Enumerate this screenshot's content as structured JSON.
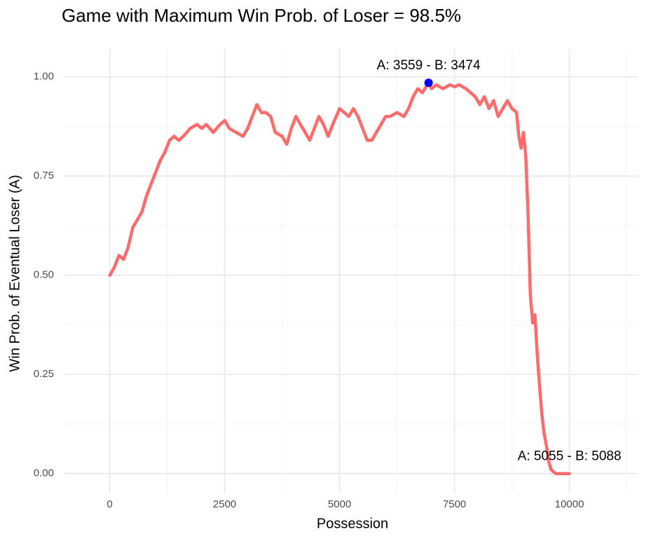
{
  "chart_data": {
    "type": "line",
    "title": "Game with Maximum Win Prob. of Loser = 98.5%",
    "xlabel": "Possession",
    "ylabel": "Win Prob. of Eventual Loser (A)",
    "xlim": [
      -1000,
      11500
    ],
    "ylim": [
      -0.05,
      1.07
    ],
    "xticks": [
      0,
      2500,
      5000,
      7500,
      10000
    ],
    "yticks": [
      {
        "value": 0,
        "label": "0.00"
      },
      {
        "value": 0.25,
        "label": "0.25"
      },
      {
        "value": 0.5,
        "label": "0.50"
      },
      {
        "value": 0.75,
        "label": "0.75"
      },
      {
        "value": 1,
        "label": "1.00"
      }
    ],
    "xticks_minor": [
      -1250,
      1250,
      3750,
      6250,
      8750,
      11250
    ],
    "yticks_minor": [
      0.125,
      0.375,
      0.625,
      0.875
    ],
    "grid": true,
    "series": [
      {
        "color": "#ff6b6b",
        "x": [
          0,
          100,
          200,
          300,
          400,
          500,
          600,
          700,
          800,
          900,
          1000,
          1100,
          1200,
          1300,
          1400,
          1500,
          1600,
          1750,
          1900,
          2000,
          2100,
          2250,
          2400,
          2500,
          2600,
          2750,
          2900,
          3000,
          3100,
          3200,
          3300,
          3400,
          3500,
          3600,
          3750,
          3850,
          3950,
          4050,
          4150,
          4250,
          4350,
          4450,
          4550,
          4650,
          4750,
          4850,
          5000,
          5100,
          5200,
          5300,
          5400,
          5500,
          5600,
          5700,
          5800,
          5900,
          6000,
          6100,
          6250,
          6400,
          6500,
          6600,
          6700,
          6800,
          6936,
          7000,
          7100,
          7250,
          7400,
          7500,
          7600,
          7750,
          7850,
          7950,
          8050,
          8150,
          8250,
          8350,
          8450,
          8550,
          8650,
          8750,
          8850,
          8900,
          8950,
          9000,
          9050,
          9100,
          9150,
          9200,
          9250,
          9300,
          9350,
          9400,
          9450,
          9500,
          9550,
          9600,
          9700,
          10000
        ],
        "values": [
          0.5,
          0.52,
          0.55,
          0.54,
          0.57,
          0.62,
          0.64,
          0.66,
          0.7,
          0.73,
          0.76,
          0.79,
          0.81,
          0.84,
          0.85,
          0.84,
          0.85,
          0.87,
          0.88,
          0.87,
          0.88,
          0.86,
          0.88,
          0.89,
          0.87,
          0.86,
          0.85,
          0.87,
          0.9,
          0.93,
          0.91,
          0.91,
          0.9,
          0.86,
          0.85,
          0.83,
          0.87,
          0.9,
          0.88,
          0.86,
          0.84,
          0.87,
          0.9,
          0.88,
          0.85,
          0.88,
          0.92,
          0.91,
          0.9,
          0.92,
          0.9,
          0.87,
          0.84,
          0.84,
          0.86,
          0.88,
          0.9,
          0.9,
          0.91,
          0.9,
          0.92,
          0.95,
          0.97,
          0.96,
          0.985,
          0.97,
          0.98,
          0.97,
          0.98,
          0.975,
          0.98,
          0.97,
          0.96,
          0.95,
          0.93,
          0.95,
          0.92,
          0.94,
          0.9,
          0.92,
          0.94,
          0.92,
          0.91,
          0.85,
          0.82,
          0.86,
          0.8,
          0.65,
          0.45,
          0.38,
          0.4,
          0.3,
          0.22,
          0.15,
          0.1,
          0.07,
          0.03,
          0.01,
          0.0,
          0.0
        ]
      }
    ],
    "highlight": {
      "x": 6936,
      "y": 0.985,
      "color": "#0000ff"
    },
    "annotations": [
      "A: 3559 - B: 3474",
      "A: 5055 - B: 5088"
    ]
  }
}
